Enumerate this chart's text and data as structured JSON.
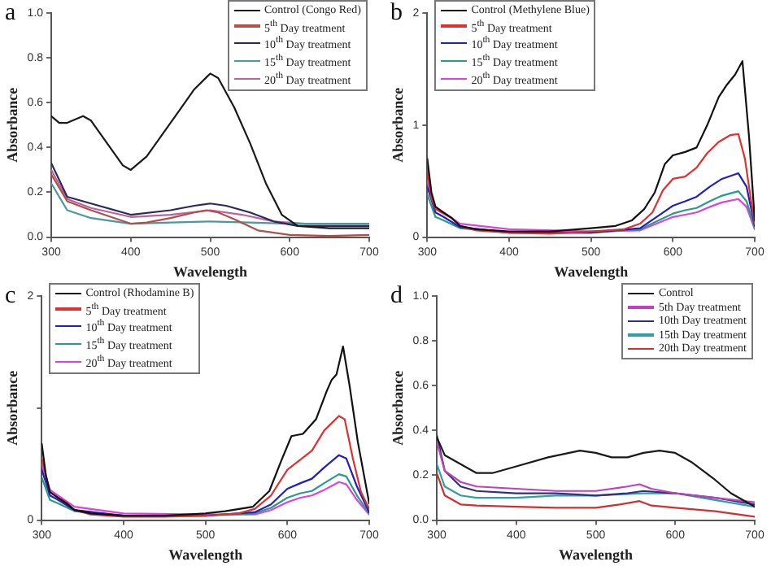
{
  "chart_data": [
    {
      "type": "line",
      "title": "a",
      "xlabel": "Wavelength",
      "ylabel": "Absorbance",
      "xlim": [
        300,
        700
      ],
      "xticks": [
        300,
        400,
        500,
        600,
        700
      ],
      "ylim": [
        0,
        1
      ],
      "yticks": [
        {
          "value": 0,
          "label": "0.0"
        },
        {
          "value": 0.2,
          "label": "0.2"
        },
        {
          "value": 0.4,
          "label": "0.4"
        },
        {
          "value": 0.6,
          "label": "0.6"
        },
        {
          "value": 0.8,
          "label": "0.8"
        },
        {
          "value": 1,
          "label": "1.0"
        }
      ],
      "legend": "top right",
      "marker": "none",
      "series": [
        {
          "name": "Control (Congo Red)",
          "color": "#1a1a1a",
          "x": [
            300,
            310,
            320,
            340,
            350,
            370,
            390,
            400,
            420,
            440,
            460,
            480,
            500,
            510,
            530,
            550,
            570,
            590,
            610,
            650,
            700
          ],
          "values": [
            0.54,
            0.51,
            0.51,
            0.54,
            0.52,
            0.42,
            0.32,
            0.3,
            0.36,
            0.46,
            0.56,
            0.66,
            0.73,
            0.71,
            0.58,
            0.42,
            0.24,
            0.1,
            0.05,
            0.04,
            0.04
          ]
        },
        {
          "name": "5$^{th}$ Day treatment",
          "color": "#b0504a",
          "x": [
            300,
            320,
            350,
            400,
            420,
            450,
            480,
            495,
            510,
            530,
            560,
            600,
            650,
            700
          ],
          "values": [
            0.28,
            0.16,
            0.12,
            0.06,
            0.065,
            0.085,
            0.11,
            0.12,
            0.11,
            0.08,
            0.03,
            0.01,
            0.005,
            0.01
          ]
        },
        {
          "name": "10$^{th}$ Day treatment",
          "color": "#2a2a5a",
          "x": [
            300,
            320,
            350,
            400,
            450,
            480,
            500,
            520,
            550,
            580,
            610,
            700
          ],
          "values": [
            0.33,
            0.18,
            0.15,
            0.1,
            0.12,
            0.14,
            0.15,
            0.14,
            0.11,
            0.07,
            0.05,
            0.05
          ]
        },
        {
          "name": "15$^{th}$ Day treatment",
          "color": "#4a9a9a",
          "x": [
            300,
            320,
            350,
            400,
            450,
            500,
            550,
            600,
            700
          ],
          "values": [
            0.24,
            0.12,
            0.085,
            0.06,
            0.065,
            0.07,
            0.065,
            0.06,
            0.06
          ]
        },
        {
          "name": "20$^{th}$ Day treatment",
          "color": "#c060a0",
          "x": [
            300,
            320,
            350,
            400,
            450,
            500,
            540,
            580,
            620,
            700
          ],
          "values": [
            0.3,
            0.17,
            0.13,
            0.09,
            0.1,
            0.12,
            0.1,
            0.07,
            0.06,
            0.06
          ]
        }
      ]
    },
    {
      "type": "line",
      "title": "b",
      "xlabel": "Wavelength",
      "ylabel": "Absorbance",
      "xlim": [
        300,
        700
      ],
      "xticks": [
        300,
        400,
        500,
        600,
        700
      ],
      "ylim": [
        0,
        2
      ],
      "yticks": [
        0,
        1,
        2
      ],
      "legend": "top left",
      "marker": "none",
      "series": [
        {
          "name": "Control (Methylene Blue)",
          "color": "#111111",
          "x": [
            300,
            305,
            310,
            320,
            330,
            340,
            360,
            400,
            450,
            500,
            530,
            550,
            565,
            578,
            590,
            600,
            615,
            629,
            642,
            656,
            666,
            676,
            685,
            693,
            700
          ],
          "values": [
            0.7,
            0.4,
            0.27,
            0.22,
            0.17,
            0.1,
            0.07,
            0.05,
            0.05,
            0.08,
            0.1,
            0.15,
            0.25,
            0.4,
            0.65,
            0.73,
            0.76,
            0.8,
            1.0,
            1.25,
            1.36,
            1.45,
            1.57,
            0.9,
            0.15
          ]
        },
        {
          "name": "5$^{th}$ Day treatment",
          "color": "#e03030",
          "x": [
            300,
            305,
            310,
            320,
            330,
            340,
            360,
            400,
            450,
            500,
            540,
            560,
            575,
            588,
            600,
            615,
            629,
            642,
            656,
            670,
            680,
            688,
            695,
            700
          ],
          "values": [
            0.6,
            0.35,
            0.25,
            0.21,
            0.17,
            0.1,
            0.06,
            0.04,
            0.03,
            0.05,
            0.07,
            0.12,
            0.22,
            0.42,
            0.52,
            0.54,
            0.62,
            0.75,
            0.85,
            0.91,
            0.92,
            0.7,
            0.35,
            0.12
          ]
        },
        {
          "name": "10$^{th}$ Day treatment",
          "color": "#2020c0",
          "x": [
            300,
            310,
            320,
            340,
            400,
            500,
            560,
            580,
            600,
            615,
            629,
            645,
            660,
            680,
            690,
            700
          ],
          "values": [
            0.45,
            0.22,
            0.18,
            0.09,
            0.04,
            0.04,
            0.08,
            0.18,
            0.28,
            0.32,
            0.36,
            0.45,
            0.52,
            0.57,
            0.45,
            0.1
          ]
        },
        {
          "name": "15$^{th}$ Day treatment",
          "color": "#2a9a8a",
          "x": [
            300,
            310,
            320,
            340,
            400,
            500,
            560,
            580,
            600,
            615,
            629,
            645,
            660,
            680,
            690,
            700
          ],
          "values": [
            0.38,
            0.18,
            0.15,
            0.08,
            0.04,
            0.04,
            0.07,
            0.14,
            0.21,
            0.24,
            0.26,
            0.32,
            0.37,
            0.41,
            0.32,
            0.08
          ]
        },
        {
          "name": "20$^{th}$ Day treatment",
          "color": "#e040e0",
          "x": [
            300,
            310,
            320,
            340,
            400,
            500,
            560,
            580,
            600,
            615,
            629,
            645,
            660,
            680,
            690,
            700
          ],
          "values": [
            0.5,
            0.27,
            0.22,
            0.12,
            0.07,
            0.05,
            0.06,
            0.12,
            0.18,
            0.2,
            0.22,
            0.27,
            0.31,
            0.34,
            0.27,
            0.07
          ]
        }
      ]
    },
    {
      "type": "line",
      "title": "c",
      "xlabel": "Wavelength",
      "ylabel": "Absorbance",
      "xlim": [
        300,
        700
      ],
      "xticks": [
        300,
        400,
        500,
        600,
        700
      ],
      "ylim": [
        0,
        2
      ],
      "yticks": [
        0,
        {
          "value": 1,
          "label": null
        },
        2
      ],
      "legend": "top left",
      "marker": "none",
      "series": [
        {
          "name": "Control (Rhodamine B)",
          "color": "#111111",
          "x": [
            300,
            305,
            310,
            320,
            330,
            340,
            360,
            400,
            450,
            500,
            524,
            558,
            578,
            592,
            605,
            619,
            635,
            648,
            654,
            660,
            668,
            676,
            686,
            700
          ],
          "values": [
            0.68,
            0.4,
            0.25,
            0.2,
            0.15,
            0.09,
            0.06,
            0.04,
            0.04,
            0.06,
            0.08,
            0.12,
            0.26,
            0.52,
            0.75,
            0.77,
            0.9,
            1.15,
            1.25,
            1.3,
            1.55,
            1.2,
            0.7,
            0.15
          ]
        },
        {
          "name": "5$^{th}$ Day treatment",
          "color": "#e03030",
          "x": [
            300,
            310,
            320,
            330,
            340,
            360,
            400,
            450,
            500,
            540,
            560,
            580,
            600,
            616,
            630,
            645,
            663,
            670,
            680,
            690,
            700
          ],
          "values": [
            0.55,
            0.25,
            0.2,
            0.16,
            0.09,
            0.05,
            0.03,
            0.03,
            0.04,
            0.06,
            0.1,
            0.22,
            0.45,
            0.54,
            0.62,
            0.8,
            0.93,
            0.9,
            0.55,
            0.25,
            0.1
          ]
        },
        {
          "name": "10$^{th}$ Day treatment",
          "color": "#2020c0",
          "x": [
            300,
            310,
            320,
            340,
            400,
            500,
            560,
            580,
            600,
            616,
            630,
            645,
            663,
            672,
            685,
            700
          ],
          "values": [
            0.45,
            0.22,
            0.18,
            0.09,
            0.04,
            0.04,
            0.07,
            0.14,
            0.28,
            0.33,
            0.37,
            0.47,
            0.58,
            0.55,
            0.3,
            0.07
          ]
        },
        {
          "name": "15$^{th}$ Day treatment",
          "color": "#2a9a8a",
          "x": [
            300,
            310,
            320,
            340,
            400,
            500,
            560,
            580,
            600,
            616,
            630,
            645,
            663,
            672,
            685,
            700
          ],
          "values": [
            0.38,
            0.18,
            0.15,
            0.08,
            0.04,
            0.04,
            0.06,
            0.11,
            0.2,
            0.24,
            0.26,
            0.33,
            0.41,
            0.39,
            0.22,
            0.06
          ]
        },
        {
          "name": "20$^{th}$ Day treatment",
          "color": "#e040e0",
          "x": [
            300,
            310,
            320,
            340,
            400,
            500,
            560,
            580,
            600,
            616,
            630,
            645,
            663,
            672,
            685,
            700
          ],
          "values": [
            0.5,
            0.27,
            0.22,
            0.12,
            0.06,
            0.05,
            0.05,
            0.09,
            0.16,
            0.2,
            0.22,
            0.27,
            0.34,
            0.32,
            0.18,
            0.05
          ]
        }
      ]
    },
    {
      "type": "line",
      "title": "d",
      "xlabel": "Wavelength",
      "ylabel": "Absorbance",
      "xlim": [
        300,
        700
      ],
      "xticks": [
        300,
        400,
        500,
        600,
        700
      ],
      "ylim": [
        0,
        1
      ],
      "yticks": [
        {
          "value": 0,
          "label": "0.0"
        },
        {
          "value": 0.2,
          "label": "0.2"
        },
        {
          "value": 0.4,
          "label": "0.4"
        },
        {
          "value": 0.6,
          "label": "0.6"
        },
        {
          "value": 0.8,
          "label": "0.8"
        },
        {
          "value": 1,
          "label": "1.0"
        }
      ],
      "legend": "top right",
      "marker": "none",
      "series": [
        {
          "name": "Control",
          "color": "#1a1a1a",
          "x": [
            300,
            310,
            330,
            350,
            370,
            400,
            440,
            480,
            500,
            520,
            540,
            560,
            580,
            600,
            620,
            650,
            670,
            700
          ],
          "values": [
            0.37,
            0.29,
            0.25,
            0.21,
            0.21,
            0.24,
            0.28,
            0.31,
            0.3,
            0.28,
            0.28,
            0.3,
            0.31,
            0.3,
            0.26,
            0.18,
            0.12,
            0.06
          ]
        },
        {
          "name": "5th Day treatment",
          "color": "#c040c0",
          "x": [
            300,
            310,
            330,
            350,
            400,
            450,
            500,
            540,
            555,
            570,
            600,
            650,
            700
          ],
          "values": [
            0.35,
            0.22,
            0.17,
            0.15,
            0.14,
            0.13,
            0.13,
            0.15,
            0.16,
            0.14,
            0.12,
            0.1,
            0.08
          ]
        },
        {
          "name": "10th Day treatment",
          "color": "#303080",
          "x": [
            300,
            310,
            330,
            350,
            400,
            450,
            500,
            540,
            560,
            600,
            650,
            700
          ],
          "values": [
            0.38,
            0.22,
            0.15,
            0.13,
            0.12,
            0.12,
            0.11,
            0.12,
            0.13,
            0.12,
            0.1,
            0.07
          ]
        },
        {
          "name": "15th Day treatment",
          "color": "#30a0a0",
          "x": [
            300,
            310,
            330,
            350,
            400,
            450,
            500,
            560,
            600,
            650,
            700
          ],
          "values": [
            0.25,
            0.15,
            0.11,
            0.1,
            0.1,
            0.11,
            0.11,
            0.12,
            0.12,
            0.09,
            0.06
          ]
        },
        {
          "name": "20th Day treatment",
          "color": "#d03030",
          "x": [
            300,
            310,
            330,
            350,
            400,
            450,
            500,
            530,
            555,
            570,
            600,
            650,
            700
          ],
          "values": [
            0.21,
            0.11,
            0.07,
            0.065,
            0.06,
            0.055,
            0.055,
            0.07,
            0.085,
            0.065,
            0.055,
            0.04,
            0.015
          ]
        }
      ]
    }
  ]
}
